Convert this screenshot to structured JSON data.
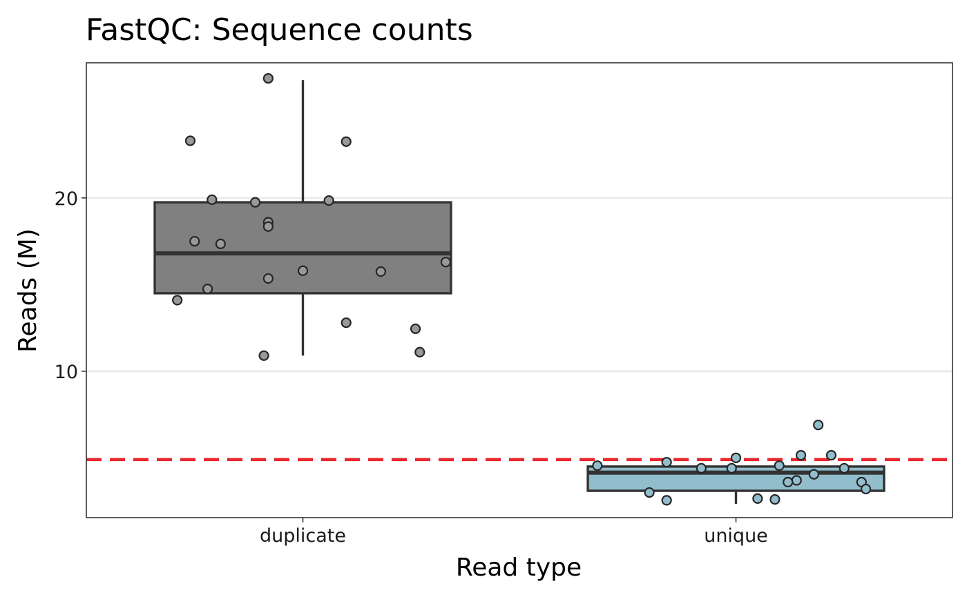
{
  "chart_data": {
    "type": "box",
    "title": "FastQC: Sequence counts",
    "xlabel": "Read type",
    "ylabel": "Reads (M)",
    "categories": [
      "duplicate",
      "unique"
    ],
    "yticks": [
      10,
      20
    ],
    "ylim": [
      1.55,
      27.8
    ],
    "grid": "horizontal",
    "reference_line": {
      "value": 4.9,
      "style": "dashed",
      "color": "#e8272e"
    },
    "boxes": [
      {
        "category": "duplicate",
        "fill": "#808080",
        "point_fill": "#999999",
        "whisker_low": 10.9,
        "q1": 14.5,
        "median": 16.8,
        "q3": 19.75,
        "whisker_high": 26.8,
        "points": [
          {
            "x": -0.08,
            "y": 26.9
          },
          {
            "x": -0.26,
            "y": 23.3
          },
          {
            "x": 0.1,
            "y": 23.25
          },
          {
            "x": -0.21,
            "y": 19.9
          },
          {
            "x": -0.11,
            "y": 19.75
          },
          {
            "x": 0.06,
            "y": 19.85
          },
          {
            "x": -0.08,
            "y": 18.6
          },
          {
            "x": -0.08,
            "y": 18.35
          },
          {
            "x": -0.25,
            "y": 17.5
          },
          {
            "x": -0.19,
            "y": 17.35
          },
          {
            "x": 0.33,
            "y": 16.3
          },
          {
            "x": 0.0,
            "y": 15.8
          },
          {
            "x": 0.18,
            "y": 15.75
          },
          {
            "x": -0.08,
            "y": 15.35
          },
          {
            "x": -0.22,
            "y": 14.75
          },
          {
            "x": -0.29,
            "y": 14.1
          },
          {
            "x": 0.1,
            "y": 12.8
          },
          {
            "x": 0.26,
            "y": 12.45
          },
          {
            "x": 0.27,
            "y": 11.1
          },
          {
            "x": -0.09,
            "y": 10.9
          }
        ]
      },
      {
        "category": "unique",
        "fill": "#92bdcc",
        "point_fill": "#92bdcc",
        "whisker_low": 2.35,
        "q1": 3.1,
        "median": 4.15,
        "q3": 4.5,
        "whisker_high": 4.5,
        "points": [
          {
            "x": 0.19,
            "y": 6.9
          },
          {
            "x": 0.15,
            "y": 5.15
          },
          {
            "x": 0.22,
            "y": 5.15
          },
          {
            "x": 0.0,
            "y": 5.0
          },
          {
            "x": -0.16,
            "y": 4.75
          },
          {
            "x": -0.32,
            "y": 4.55
          },
          {
            "x": 0.1,
            "y": 4.55
          },
          {
            "x": -0.08,
            "y": 4.4
          },
          {
            "x": -0.01,
            "y": 4.4
          },
          {
            "x": 0.25,
            "y": 4.4
          },
          {
            "x": 0.18,
            "y": 4.05
          },
          {
            "x": 0.14,
            "y": 3.7
          },
          {
            "x": 0.12,
            "y": 3.6
          },
          {
            "x": 0.29,
            "y": 3.6
          },
          {
            "x": 0.3,
            "y": 3.2
          },
          {
            "x": -0.2,
            "y": 3.0
          },
          {
            "x": 0.05,
            "y": 2.65
          },
          {
            "x": 0.09,
            "y": 2.6
          },
          {
            "x": -0.16,
            "y": 2.55
          }
        ]
      }
    ]
  }
}
